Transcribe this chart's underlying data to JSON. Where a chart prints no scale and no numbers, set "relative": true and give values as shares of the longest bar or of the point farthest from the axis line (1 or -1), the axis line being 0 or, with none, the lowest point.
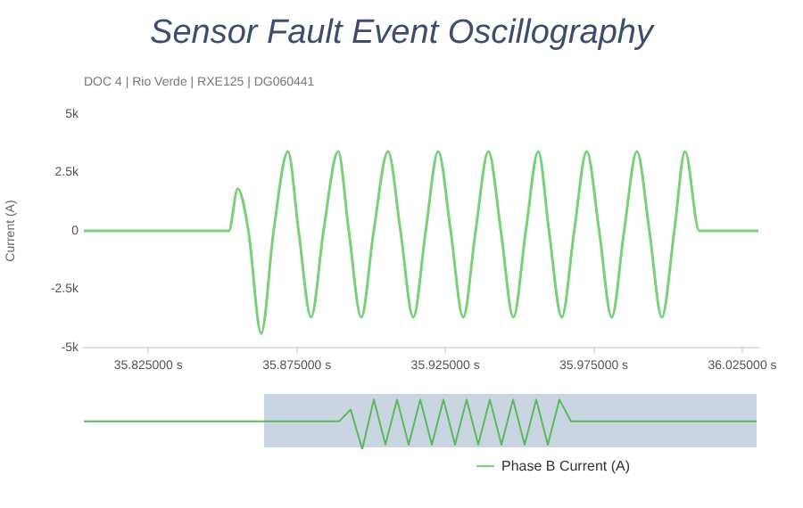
{
  "chart_data": [
    {
      "type": "line",
      "title": "Sensor Fault Event Oscillography",
      "subtitle": "DOC 4 | Rio Verde | RXE125 | DG060441",
      "ylabel": "Current (A)",
      "x": [
        35.8033,
        35.8521,
        35.8551,
        35.8587,
        35.863,
        35.8672,
        35.872,
        35.8756,
        35.8798,
        35.884,
        35.8889,
        35.8925,
        35.8967,
        35.9009,
        35.9057,
        35.9099,
        35.9142,
        35.9184,
        35.9226,
        35.9268,
        35.931,
        35.9352,
        35.9395,
        35.9437,
        35.9479,
        35.9521,
        35.9563,
        35.9599,
        35.9642,
        35.9684,
        35.9726,
        35.9768,
        35.981,
        35.9852,
        35.9895,
        35.9937,
        35.9979,
        36.0021,
        36.0057,
        36.0105,
        36.0304
      ],
      "series": [
        {
          "name": "Phase B Current (A)",
          "color": "#78d078",
          "values": [
            0,
            0,
            1800,
            0,
            -4400,
            0,
            3400,
            0,
            -3700,
            0,
            3400,
            0,
            -3700,
            0,
            3400,
            0,
            -3700,
            0,
            3400,
            0,
            -3700,
            0,
            3400,
            0,
            -3700,
            0,
            3400,
            0,
            -3700,
            0,
            3400,
            0,
            -3700,
            0,
            3400,
            0,
            -3700,
            0,
            3400,
            0,
            0
          ]
        }
      ],
      "xlim": [
        35.8033,
        36.0304
      ],
      "xticks": [
        {
          "value": 35.825,
          "label": "35.825000 s"
        },
        {
          "value": 35.875,
          "label": "35.875000 s"
        },
        {
          "value": 35.925,
          "label": "35.925000 s"
        },
        {
          "value": 35.975,
          "label": "35.975000 s"
        },
        {
          "value": 36.025,
          "label": "36.025000 s"
        }
      ],
      "ylim": [
        -5000,
        5000
      ],
      "yticks": [
        {
          "value": -5000,
          "label": "-5k"
        },
        {
          "value": -2500,
          "label": "-2.5k"
        },
        0,
        {
          "value": 2500,
          "label": "2.5k"
        },
        {
          "value": 5000,
          "label": "5k"
        }
      ],
      "legend": "bottom"
    },
    {
      "type": "line",
      "relative": true,
      "categories": [
        null,
        null,
        null,
        null,
        null,
        null,
        null,
        null,
        null,
        null,
        null,
        null,
        null,
        null,
        null,
        null,
        null,
        null,
        null,
        null,
        null,
        null,
        null,
        null,
        null,
        null,
        null,
        null,
        null,
        null,
        null,
        null,
        null,
        null,
        null,
        null,
        null,
        null,
        null,
        null,
        null,
        null,
        null,
        null,
        null,
        null,
        null,
        null,
        null,
        null,
        null,
        null,
        null,
        null,
        null,
        null,
        null,
        null,
        null
      ],
      "series": [
        {
          "color": "#5cb85c",
          "values": [
            0.56,
            0.56,
            0.56,
            0.56,
            0.56,
            0.56,
            0.56,
            0.56,
            0.56,
            0.56,
            0.56,
            0.56,
            0.56,
            0.56,
            0.56,
            0.56,
            0.56,
            0.56,
            0.56,
            0.56,
            0.56,
            0.56,
            0.56,
            0.8,
            0,
            1,
            0.09,
            1,
            0.09,
            1,
            0.09,
            1,
            0.09,
            1,
            0.09,
            1,
            0.09,
            1,
            0.09,
            1,
            0.09,
            1,
            0.56,
            0.56,
            0.56,
            0.56,
            0.56,
            0.56,
            0.56,
            0.56,
            0.56,
            0.56,
            0.56,
            0.56,
            0.56,
            0.56,
            0.56,
            0.56,
            0.56
          ]
        }
      ]
    }
  ]
}
